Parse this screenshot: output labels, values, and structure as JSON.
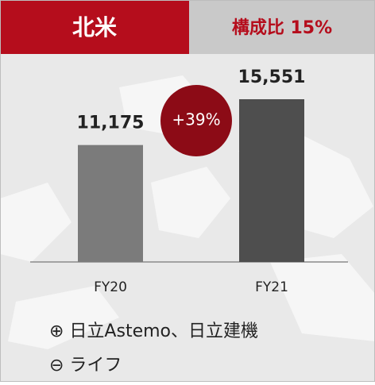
{
  "chart_data": {
    "type": "bar",
    "title": "北米",
    "subtitle": "構成比 15%",
    "categories": [
      "FY20",
      "FY21"
    ],
    "values": [
      11175,
      15551
    ],
    "value_labels": [
      "11,175",
      "15,551"
    ],
    "colors": [
      "#7b7b7b",
      "#4e4e4e"
    ],
    "annotation": "+39%",
    "notes": [
      "⊕ 日立Astemo、日立建機",
      "⊖ ライフ"
    ]
  }
}
